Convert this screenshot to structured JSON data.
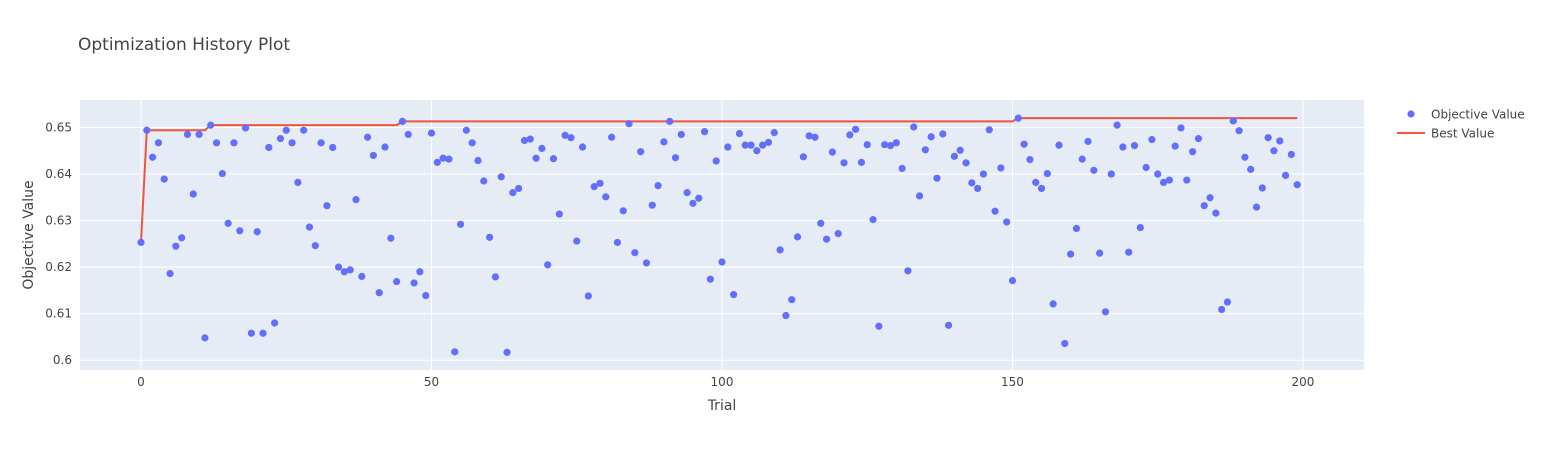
{
  "chart_data": {
    "type": "scatter",
    "title": "Optimization History Plot",
    "xlabel": "Trial",
    "ylabel": "Objective Value",
    "xlim": [
      -10.5,
      210.5
    ],
    "ylim": [
      0.5979,
      0.6559
    ],
    "x_ticks": [
      0,
      50,
      100,
      150,
      200
    ],
    "y_ticks": [
      0.6,
      0.61,
      0.62,
      0.63,
      0.64,
      0.65
    ],
    "y_tick_labels": [
      "0.6",
      "0.61",
      "0.62",
      "0.63",
      "0.64",
      "0.65"
    ],
    "grid": true,
    "legend_position": "top-right",
    "colors": {
      "plot_bg": "#e5ecf6",
      "grid": "#ffffff",
      "objective": "#636efa",
      "best": "#ef553b",
      "text": "#444444",
      "title": "#444444"
    },
    "series": [
      {
        "name": "Objective Value",
        "mode": "markers",
        "points": [
          [
            0,
            0.6253
          ],
          [
            1,
            0.6494
          ],
          [
            2,
            0.6436
          ],
          [
            3,
            0.6467
          ],
          [
            4,
            0.6389
          ],
          [
            5,
            0.6186
          ],
          [
            6,
            0.6245
          ],
          [
            7,
            0.6263
          ],
          [
            8,
            0.6485
          ],
          [
            9,
            0.6357
          ],
          [
            10,
            0.6485
          ],
          [
            11,
            0.6048
          ],
          [
            12,
            0.6505
          ],
          [
            13,
            0.6467
          ],
          [
            14,
            0.6401
          ],
          [
            15,
            0.6294
          ],
          [
            16,
            0.6467
          ],
          [
            17,
            0.6278
          ],
          [
            18,
            0.6499
          ],
          [
            19,
            0.6058
          ],
          [
            20,
            0.6276
          ],
          [
            21,
            0.6058
          ],
          [
            22,
            0.6457
          ],
          [
            23,
            0.608
          ],
          [
            24,
            0.6476
          ],
          [
            25,
            0.6494
          ],
          [
            26,
            0.6467
          ],
          [
            27,
            0.6382
          ],
          [
            28,
            0.6494
          ],
          [
            29,
            0.6286
          ],
          [
            30,
            0.6246
          ],
          [
            31,
            0.6467
          ],
          [
            32,
            0.6332
          ],
          [
            33,
            0.6457
          ],
          [
            34,
            0.62
          ],
          [
            35,
            0.619
          ],
          [
            36,
            0.6194
          ],
          [
            37,
            0.6345
          ],
          [
            38,
            0.618
          ],
          [
            39,
            0.6479
          ],
          [
            40,
            0.644
          ],
          [
            41,
            0.6145
          ],
          [
            42,
            0.6458
          ],
          [
            43,
            0.6262
          ],
          [
            44,
            0.6169
          ],
          [
            45,
            0.6513
          ],
          [
            46,
            0.6485
          ],
          [
            47,
            0.6166
          ],
          [
            48,
            0.619
          ],
          [
            49,
            0.6139
          ],
          [
            50,
            0.6488
          ],
          [
            51,
            0.6425
          ],
          [
            52,
            0.6434
          ],
          [
            53,
            0.6432
          ],
          [
            54,
            0.6018
          ],
          [
            55,
            0.6292
          ],
          [
            56,
            0.6494
          ],
          [
            57,
            0.6467
          ],
          [
            58,
            0.6429
          ],
          [
            59,
            0.6385
          ],
          [
            60,
            0.6264
          ],
          [
            61,
            0.6179
          ],
          [
            62,
            0.6394
          ],
          [
            63,
            0.6017
          ],
          [
            64,
            0.636
          ],
          [
            65,
            0.6369
          ],
          [
            66,
            0.6472
          ],
          [
            67,
            0.6475
          ],
          [
            68,
            0.6434
          ],
          [
            69,
            0.6455
          ],
          [
            70,
            0.6205
          ],
          [
            71,
            0.6433
          ],
          [
            72,
            0.6314
          ],
          [
            73,
            0.6483
          ],
          [
            74,
            0.6478
          ],
          [
            75,
            0.6256
          ],
          [
            76,
            0.6458
          ],
          [
            77,
            0.6138
          ],
          [
            78,
            0.6373
          ],
          [
            79,
            0.638
          ],
          [
            80,
            0.6351
          ],
          [
            81,
            0.6479
          ],
          [
            82,
            0.6253
          ],
          [
            83,
            0.6321
          ],
          [
            84,
            0.6508
          ],
          [
            85,
            0.6231
          ],
          [
            86,
            0.6448
          ],
          [
            87,
            0.6209
          ],
          [
            88,
            0.6333
          ],
          [
            89,
            0.6375
          ],
          [
            90,
            0.6469
          ],
          [
            91,
            0.6513
          ],
          [
            92,
            0.6435
          ],
          [
            93,
            0.6485
          ],
          [
            94,
            0.636
          ],
          [
            95,
            0.6337
          ],
          [
            96,
            0.6348
          ],
          [
            97,
            0.6491
          ],
          [
            98,
            0.6174
          ],
          [
            99,
            0.6428
          ],
          [
            100,
            0.6211
          ],
          [
            101,
            0.6458
          ],
          [
            102,
            0.6141
          ],
          [
            103,
            0.6487
          ],
          [
            104,
            0.6462
          ],
          [
            105,
            0.6462
          ],
          [
            106,
            0.645
          ],
          [
            107,
            0.6462
          ],
          [
            108,
            0.6468
          ],
          [
            109,
            0.6489
          ],
          [
            110,
            0.6237
          ],
          [
            111,
            0.6096
          ],
          [
            112,
            0.613
          ],
          [
            113,
            0.6265
          ],
          [
            114,
            0.6437
          ],
          [
            115,
            0.6482
          ],
          [
            116,
            0.6479
          ],
          [
            117,
            0.6294
          ],
          [
            118,
            0.626
          ],
          [
            119,
            0.6447
          ],
          [
            120,
            0.6272
          ],
          [
            121,
            0.6424
          ],
          [
            122,
            0.6484
          ],
          [
            123,
            0.6496
          ],
          [
            124,
            0.6425
          ],
          [
            125,
            0.6463
          ],
          [
            126,
            0.6302
          ],
          [
            127,
            0.6073
          ],
          [
            128,
            0.6463
          ],
          [
            129,
            0.6461
          ],
          [
            130,
            0.6467
          ],
          [
            131,
            0.6412
          ],
          [
            132,
            0.6192
          ],
          [
            133,
            0.6501
          ],
          [
            134,
            0.6353
          ],
          [
            135,
            0.6452
          ],
          [
            136,
            0.648
          ],
          [
            137,
            0.6391
          ],
          [
            138,
            0.6486
          ],
          [
            139,
            0.6075
          ],
          [
            140,
            0.6438
          ],
          [
            141,
            0.6451
          ],
          [
            142,
            0.6424
          ],
          [
            143,
            0.6381
          ],
          [
            144,
            0.6369
          ],
          [
            145,
            0.64
          ],
          [
            146,
            0.6495
          ],
          [
            147,
            0.632
          ],
          [
            148,
            0.6413
          ],
          [
            149,
            0.6297
          ],
          [
            150,
            0.6171
          ],
          [
            151,
            0.652
          ],
          [
            152,
            0.6464
          ],
          [
            153,
            0.6431
          ],
          [
            154,
            0.6382
          ],
          [
            155,
            0.6369
          ],
          [
            156,
            0.6401
          ],
          [
            157,
            0.6121
          ],
          [
            158,
            0.6462
          ],
          [
            159,
            0.6036
          ],
          [
            160,
            0.6228
          ],
          [
            161,
            0.6283
          ],
          [
            162,
            0.6432
          ],
          [
            163,
            0.647
          ],
          [
            164,
            0.6408
          ],
          [
            165,
            0.623
          ],
          [
            166,
            0.6104
          ],
          [
            167,
            0.64
          ],
          [
            168,
            0.6505
          ],
          [
            169,
            0.6458
          ],
          [
            170,
            0.6232
          ],
          [
            171,
            0.6461
          ],
          [
            172,
            0.6285
          ],
          [
            173,
            0.6414
          ],
          [
            174,
            0.6474
          ],
          [
            175,
            0.64
          ],
          [
            176,
            0.6382
          ],
          [
            177,
            0.6387
          ],
          [
            178,
            0.646
          ],
          [
            179,
            0.6499
          ],
          [
            180,
            0.6387
          ],
          [
            181,
            0.6448
          ],
          [
            182,
            0.6476
          ],
          [
            183,
            0.6332
          ],
          [
            184,
            0.6349
          ],
          [
            185,
            0.6316
          ],
          [
            186,
            0.6109
          ],
          [
            187,
            0.6125
          ],
          [
            188,
            0.6514
          ],
          [
            189,
            0.6493
          ],
          [
            190,
            0.6436
          ],
          [
            191,
            0.641
          ],
          [
            192,
            0.6329
          ],
          [
            193,
            0.637
          ],
          [
            194,
            0.6478
          ],
          [
            195,
            0.645
          ],
          [
            196,
            0.6471
          ],
          [
            197,
            0.6397
          ],
          [
            198,
            0.6442
          ],
          [
            199,
            0.6377
          ]
        ]
      },
      {
        "name": "Best Value",
        "mode": "lines",
        "points": [
          [
            0,
            0.6253
          ],
          [
            1,
            0.6494
          ],
          [
            11,
            0.6494
          ],
          [
            12,
            0.6505
          ],
          [
            44,
            0.6505
          ],
          [
            45,
            0.6513
          ],
          [
            150,
            0.6513
          ],
          [
            151,
            0.652
          ],
          [
            199,
            0.652
          ]
        ]
      }
    ]
  }
}
